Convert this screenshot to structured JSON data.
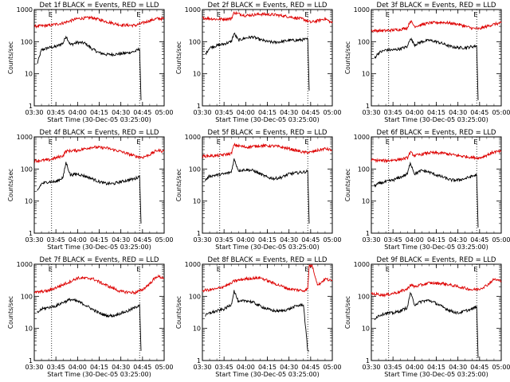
{
  "chart_data": [
    {
      "type": "line",
      "title": "Det 1f BLACK = Events, RED = LLD",
      "ylabel": "Counts/sec",
      "xlabel": "Start Time (30-Dec-05 03:25:00)",
      "yscale": "log",
      "ylim": [
        1,
        1000
      ],
      "xlim": [
        "03:30",
        "05:00"
      ],
      "xticks": [
        "03:30",
        "03:45",
        "04:00",
        "04:15",
        "04:30",
        "04:45",
        "05:00"
      ],
      "yticks": [
        "1",
        "10",
        "100",
        "1000"
      ],
      "marker_E_times": [
        "03:42",
        "04:43"
      ],
      "series": [
        {
          "color": "#000000",
          "x": [
            "03:32",
            "03:35",
            "03:40",
            "03:45",
            "03:50",
            "03:52",
            "03:55",
            "04:00",
            "04:05",
            "04:10",
            "04:15",
            "04:20",
            "04:25",
            "04:30",
            "04:35",
            "04:40",
            "04:43",
            "04:44"
          ],
          "y": [
            20,
            55,
            65,
            70,
            90,
            150,
            80,
            95,
            90,
            60,
            45,
            40,
            40,
            42,
            45,
            50,
            60,
            1.5
          ]
        },
        {
          "color": "#dd0000",
          "x": [
            "03:30",
            "03:40",
            "03:50",
            "04:00",
            "04:10",
            "04:20",
            "04:30",
            "04:40",
            "04:45",
            "04:50",
            "04:55",
            "05:00"
          ],
          "y": [
            300,
            320,
            380,
            520,
            560,
            420,
            330,
            320,
            380,
            450,
            520,
            520
          ]
        }
      ]
    },
    {
      "type": "line",
      "title": "Det 2f BLACK = Events, RED = LLD",
      "ylabel": "Counts/sec",
      "xlabel": "Start Time (30-Dec-05 03:25:00)",
      "yscale": "log",
      "ylim": [
        1,
        1000
      ],
      "xlim": [
        "03:30",
        "05:00"
      ],
      "xticks": [
        "03:30",
        "03:45",
        "04:00",
        "04:15",
        "04:30",
        "04:45",
        "05:00"
      ],
      "yticks": [
        "1",
        "10",
        "100",
        "1000"
      ],
      "marker_E_times": [
        "03:42",
        "04:43"
      ],
      "series": [
        {
          "color": "#000000",
          "x": [
            "03:32",
            "03:35",
            "03:40",
            "03:45",
            "03:50",
            "03:52",
            "03:55",
            "04:00",
            "04:05",
            "04:10",
            "04:15",
            "04:20",
            "04:25",
            "04:30",
            "04:35",
            "04:40",
            "04:43",
            "04:44"
          ],
          "y": [
            40,
            65,
            75,
            85,
            100,
            180,
            110,
            130,
            140,
            115,
            100,
            95,
            100,
            110,
            110,
            115,
            120,
            3
          ]
        },
        {
          "color": "#dd0000",
          "x": [
            "03:30",
            "03:40",
            "03:50",
            "03:52",
            "04:00",
            "04:10",
            "04:20",
            "04:30",
            "04:40",
            "04:45",
            "04:50",
            "04:55",
            "05:00"
          ],
          "y": [
            550,
            500,
            520,
            800,
            650,
            720,
            690,
            600,
            500,
            400,
            450,
            520,
            380
          ]
        }
      ]
    },
    {
      "type": "line",
      "title": "Det 3f BLACK = Events, RED = LLD",
      "ylabel": "Counts/sec",
      "xlabel": "Start Time (30-Dec-05 03:25:00)",
      "yscale": "log",
      "ylim": [
        1,
        1000
      ],
      "xlim": [
        "03:30",
        "05:00"
      ],
      "xticks": [
        "03:30",
        "03:45",
        "04:00",
        "04:15",
        "04:30",
        "04:45",
        "05:00"
      ],
      "yticks": [
        "1",
        "10",
        "100",
        "1000"
      ],
      "marker_E_times": [
        "03:42",
        "04:43"
      ],
      "series": [
        {
          "color": "#000000",
          "x": [
            "03:32",
            "03:35",
            "03:40",
            "03:45",
            "03:50",
            "03:55",
            "03:57",
            "04:00",
            "04:05",
            "04:10",
            "04:15",
            "04:20",
            "04:25",
            "04:30",
            "04:35",
            "04:40",
            "04:43",
            "04:44"
          ],
          "y": [
            30,
            45,
            55,
            55,
            60,
            70,
            130,
            80,
            100,
            110,
            100,
            85,
            70,
            65,
            65,
            70,
            75,
            1.5
          ]
        },
        {
          "color": "#dd0000",
          "x": [
            "03:30",
            "03:40",
            "03:50",
            "03:55",
            "03:57",
            "04:00",
            "04:10",
            "04:20",
            "04:30",
            "04:40",
            "04:45",
            "04:50",
            "04:55",
            "05:00"
          ],
          "y": [
            220,
            220,
            240,
            270,
            450,
            300,
            380,
            400,
            350,
            260,
            250,
            300,
            350,
            380
          ]
        }
      ]
    },
    {
      "type": "line",
      "title": "Det 4f BLACK = Events, RED = LLD",
      "ylabel": "Counts/sec",
      "xlabel": "Start Time (30-Dec-05 03:25:00)",
      "yscale": "log",
      "ylim": [
        1,
        1000
      ],
      "xlim": [
        "03:30",
        "05:00"
      ],
      "xticks": [
        "03:30",
        "03:45",
        "04:00",
        "04:15",
        "04:30",
        "04:45",
        "05:00"
      ],
      "yticks": [
        "1",
        "10",
        "100",
        "1000"
      ],
      "marker_E_times": [
        "03:42",
        "04:43"
      ],
      "series": [
        {
          "color": "#000000",
          "x": [
            "03:32",
            "03:35",
            "03:40",
            "03:45",
            "03:50",
            "03:52",
            "03:55",
            "04:00",
            "04:05",
            "04:10",
            "04:15",
            "04:20",
            "04:25",
            "04:30",
            "04:35",
            "04:40",
            "04:43",
            "04:44"
          ],
          "y": [
            20,
            35,
            40,
            40,
            55,
            160,
            65,
            70,
            60,
            50,
            40,
            35,
            35,
            40,
            45,
            50,
            60,
            2
          ]
        },
        {
          "color": "#dd0000",
          "x": [
            "03:30",
            "03:40",
            "03:50",
            "03:52",
            "04:00",
            "04:10",
            "04:20",
            "04:30",
            "04:40",
            "04:45",
            "04:50",
            "04:55",
            "05:00"
          ],
          "y": [
            180,
            190,
            260,
            360,
            380,
            480,
            450,
            350,
            250,
            230,
            280,
            380,
            360
          ]
        }
      ]
    },
    {
      "type": "line",
      "title": "Det 5f BLACK = Events, RED = LLD",
      "ylabel": "Counts/sec",
      "xlabel": "Start Time (30-Dec-05 03:25:00)",
      "yscale": "log",
      "ylim": [
        1,
        1000
      ],
      "xlim": [
        "03:30",
        "05:00"
      ],
      "xticks": [
        "03:30",
        "03:45",
        "04:00",
        "04:15",
        "04:30",
        "04:45",
        "05:00"
      ],
      "yticks": [
        "1",
        "10",
        "100",
        "1000"
      ],
      "marker_E_times": [
        "03:42",
        "04:43"
      ],
      "series": [
        {
          "color": "#000000",
          "x": [
            "03:32",
            "03:35",
            "03:40",
            "03:45",
            "03:50",
            "03:52",
            "03:55",
            "04:00",
            "04:05",
            "04:10",
            "04:15",
            "04:20",
            "04:25",
            "04:30",
            "04:35",
            "04:40",
            "04:43",
            "04:44"
          ],
          "y": [
            45,
            60,
            65,
            70,
            80,
            200,
            90,
            95,
            90,
            70,
            55,
            50,
            55,
            70,
            75,
            80,
            85,
            2
          ]
        },
        {
          "color": "#dd0000",
          "x": [
            "03:30",
            "03:40",
            "03:50",
            "03:52",
            "04:00",
            "04:10",
            "04:20",
            "04:30",
            "04:40",
            "04:45",
            "04:50",
            "04:55",
            "05:00"
          ],
          "y": [
            250,
            260,
            300,
            560,
            480,
            530,
            520,
            430,
            330,
            330,
            380,
            430,
            380
          ]
        }
      ]
    },
    {
      "type": "line",
      "title": "Det 6f BLACK = Events, RED = LLD",
      "ylabel": "Counts/sec",
      "xlabel": "Start Time (30-Dec-05 03:25:00)",
      "yscale": "log",
      "ylim": [
        1,
        1000
      ],
      "xlim": [
        "03:30",
        "05:00"
      ],
      "xticks": [
        "03:30",
        "03:45",
        "04:00",
        "04:15",
        "04:30",
        "04:45",
        "05:00"
      ],
      "yticks": [
        "1",
        "10",
        "100",
        "1000"
      ],
      "marker_E_times": [
        "03:42",
        "04:43"
      ],
      "series": [
        {
          "color": "#000000",
          "x": [
            "03:32",
            "03:35",
            "03:40",
            "03:45",
            "03:50",
            "03:55",
            "03:57",
            "04:00",
            "04:05",
            "04:10",
            "04:15",
            "04:20",
            "04:25",
            "04:30",
            "04:35",
            "04:40",
            "04:43",
            "04:44"
          ],
          "y": [
            30,
            35,
            40,
            45,
            55,
            70,
            160,
            70,
            90,
            80,
            65,
            55,
            45,
            45,
            50,
            60,
            65,
            1.5
          ]
        },
        {
          "color": "#dd0000",
          "x": [
            "03:30",
            "03:40",
            "03:50",
            "03:55",
            "03:57",
            "04:00",
            "04:10",
            "04:20",
            "04:30",
            "04:40",
            "04:45",
            "04:50",
            "04:55",
            "05:00"
          ],
          "y": [
            190,
            180,
            200,
            220,
            330,
            260,
            320,
            310,
            260,
            230,
            220,
            270,
            340,
            350
          ]
        }
      ]
    },
    {
      "type": "line",
      "title": "Det 7f BLACK = Events, RED = LLD",
      "ylabel": "Counts/sec",
      "xlabel": "Start Time (30-Dec-05 03:25:00)",
      "yscale": "log",
      "ylim": [
        1,
        1000
      ],
      "xlim": [
        "03:30",
        "05:00"
      ],
      "xticks": [
        "03:30",
        "03:45",
        "04:00",
        "04:15",
        "04:30",
        "04:45",
        "05:00"
      ],
      "yticks": [
        "1",
        "10",
        "100",
        "1000"
      ],
      "marker_E_times": [
        "03:42",
        "04:43"
      ],
      "series": [
        {
          "color": "#000000",
          "x": [
            "03:32",
            "03:35",
            "03:40",
            "03:45",
            "03:50",
            "03:55",
            "04:00",
            "04:05",
            "04:10",
            "04:15",
            "04:20",
            "04:25",
            "04:30",
            "04:35",
            "04:40",
            "04:43",
            "04:44"
          ],
          "y": [
            30,
            40,
            45,
            50,
            65,
            80,
            70,
            55,
            40,
            30,
            25,
            25,
            30,
            35,
            45,
            55,
            2
          ]
        },
        {
          "color": "#dd0000",
          "x": [
            "03:30",
            "03:40",
            "03:50",
            "04:00",
            "04:10",
            "04:20",
            "04:30",
            "04:40",
            "04:45",
            "04:50",
            "04:55",
            "05:00"
          ],
          "y": [
            130,
            150,
            230,
            370,
            360,
            220,
            140,
            130,
            160,
            250,
            420,
            370
          ]
        }
      ]
    },
    {
      "type": "line",
      "title": "Det 8f BLACK = Events, RED = LLD",
      "ylabel": "Counts/sec",
      "xlabel": "Start Time (30-Dec-05 03:25:00)",
      "yscale": "log",
      "ylim": [
        1,
        1000
      ],
      "xlim": [
        "03:30",
        "05:00"
      ],
      "xticks": [
        "03:30",
        "03:45",
        "04:00",
        "04:15",
        "04:30",
        "04:45",
        "05:00"
      ],
      "yticks": [
        "1",
        "10",
        "100",
        "1000"
      ],
      "marker_E_times": [
        "03:42",
        "04:43"
      ],
      "series": [
        {
          "color": "#000000",
          "x": [
            "03:32",
            "03:35",
            "03:40",
            "03:45",
            "03:50",
            "03:52",
            "03:55",
            "04:00",
            "04:05",
            "04:10",
            "04:15",
            "04:20",
            "04:25",
            "04:30",
            "04:35",
            "04:40",
            "04:43",
            "04:44"
          ],
          "y": [
            25,
            30,
            35,
            40,
            55,
            150,
            65,
            75,
            65,
            50,
            40,
            35,
            35,
            40,
            50,
            55,
            2,
            2
          ]
        },
        {
          "color": "#dd0000",
          "x": [
            "03:30",
            "03:40",
            "03:50",
            "03:52",
            "04:00",
            "04:10",
            "04:20",
            "04:30",
            "04:40",
            "04:43",
            "04:44",
            "04:46",
            "04:50",
            "04:55",
            "05:00"
          ],
          "y": [
            150,
            170,
            250,
            300,
            350,
            380,
            250,
            170,
            150,
            170,
            900,
            900,
            220,
            350,
            300
          ]
        }
      ]
    },
    {
      "type": "line",
      "title": "Det 9f BLACK = Events, RED = LLD",
      "ylabel": "Counts/sec",
      "xlabel": "Start Time (30-Dec-05 03:25:00)",
      "yscale": "log",
      "ylim": [
        1,
        1000
      ],
      "xlim": [
        "03:30",
        "05:00"
      ],
      "xticks": [
        "03:30",
        "03:45",
        "04:00",
        "04:15",
        "04:30",
        "04:45",
        "05:00"
      ],
      "yticks": [
        "1",
        "10",
        "100",
        "1000"
      ],
      "marker_E_times": [
        "03:42",
        "04:43"
      ],
      "series": [
        {
          "color": "#000000",
          "x": [
            "03:32",
            "03:35",
            "03:40",
            "03:45",
            "03:50",
            "03:55",
            "03:57",
            "04:00",
            "04:05",
            "04:10",
            "04:15",
            "04:20",
            "04:25",
            "04:30",
            "04:35",
            "04:40",
            "04:43",
            "04:44"
          ],
          "y": [
            20,
            25,
            30,
            30,
            35,
            45,
            130,
            55,
            70,
            75,
            60,
            45,
            35,
            30,
            35,
            40,
            50,
            1.2
          ]
        },
        {
          "color": "#dd0000",
          "x": [
            "03:30",
            "03:40",
            "03:50",
            "03:55",
            "03:57",
            "04:00",
            "04:10",
            "04:20",
            "04:30",
            "04:40",
            "04:45",
            "04:50",
            "04:55",
            "05:00"
          ],
          "y": [
            120,
            110,
            140,
            170,
            230,
            200,
            260,
            250,
            200,
            160,
            170,
            220,
            340,
            300
          ]
        }
      ]
    }
  ]
}
